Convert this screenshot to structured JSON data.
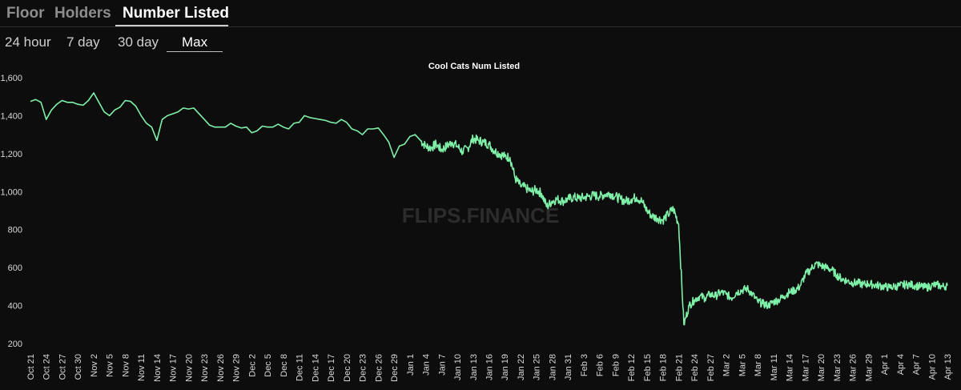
{
  "tabs": [
    {
      "label": "Floor",
      "active": false
    },
    {
      "label": "Holders",
      "active": false
    },
    {
      "label": "Number Listed",
      "active": true
    }
  ],
  "ranges": [
    {
      "label": "24 hour",
      "active": false
    },
    {
      "label": "7 day",
      "active": false
    },
    {
      "label": "30 day",
      "active": false
    },
    {
      "label": "Max",
      "active": true
    }
  ],
  "watermark": "FLIPS.FINANCE",
  "colors": {
    "line": "#7ff0a8",
    "background": "#0d0d0d",
    "active_text": "#ffffff",
    "inactive_text": "#8d8d8d"
  },
  "chart_data": {
    "type": "line",
    "title": "Cool Cats Num Listed",
    "xlabel": "",
    "ylabel": "",
    "ylim": [
      200,
      1600
    ],
    "y_ticks": [
      "200",
      "400",
      "600",
      "800",
      "1,000",
      "1,200",
      "1,400",
      "1,600"
    ],
    "x_ticks": [
      "Oct 21",
      "Oct 24",
      "Oct 27",
      "Oct 30",
      "Nov 2",
      "Nov 5",
      "Nov 8",
      "Nov 11",
      "Nov 14",
      "Nov 17",
      "Nov 20",
      "Nov 23",
      "Nov 26",
      "Nov 29",
      "Dec 2",
      "Dec 5",
      "Dec 8",
      "Dec 11",
      "Dec 14",
      "Dec 17",
      "Dec 20",
      "Dec 23",
      "Dec 26",
      "Dec 29",
      "Jan 1",
      "Jan 4",
      "Jan 7",
      "Jan 10",
      "Jan 13",
      "Jan 16",
      "Jan 19",
      "Jan 22",
      "Jan 25",
      "Jan 28",
      "Jan 31",
      "Feb 3",
      "Feb 6",
      "Feb 9",
      "Feb 12",
      "Feb 15",
      "Feb 18",
      "Feb 21",
      "Feb 24",
      "Feb 27",
      "Mar 2",
      "Mar 5",
      "Mar 8",
      "Mar 11",
      "Mar 14",
      "Mar 17",
      "Mar 20",
      "Mar 23",
      "Mar 26",
      "Mar 29",
      "Apr 1",
      "Apr 4",
      "Apr 7",
      "Apr 10",
      "Apr 13"
    ],
    "grid": false,
    "legend": "none",
    "series": [
      {
        "x_days_from_oct21": [
          0,
          1,
          2,
          3,
          4,
          5,
          6,
          7,
          8,
          9,
          10,
          11,
          12,
          13,
          14,
          15,
          16,
          17,
          18,
          19,
          20,
          21,
          22,
          23,
          24,
          25,
          26,
          27,
          28,
          29,
          30,
          31,
          32,
          33,
          34,
          35,
          36,
          37,
          38,
          39,
          40,
          41,
          42,
          43,
          44,
          45,
          46,
          47,
          48,
          49,
          50,
          51,
          52,
          53,
          54,
          55,
          56,
          57,
          58,
          59,
          60,
          61,
          62,
          63,
          64,
          65,
          66,
          67,
          68,
          69,
          70,
          71,
          72,
          73,
          74,
          75,
          76,
          77,
          78,
          79,
          80,
          81,
          82,
          83,
          84,
          85,
          86,
          87,
          88,
          89,
          90,
          91,
          92,
          93,
          94,
          95,
          96,
          97,
          98,
          99,
          100,
          101,
          102,
          103,
          104,
          105,
          106,
          107,
          108,
          109,
          110,
          111,
          112,
          113,
          114,
          115,
          116,
          117,
          118,
          119,
          120,
          121,
          122,
          123,
          124,
          125,
          126,
          127,
          128,
          129,
          130,
          131,
          132,
          133,
          134,
          135,
          136,
          137,
          138,
          139,
          140,
          141,
          142,
          143,
          144,
          145,
          146,
          147,
          148,
          149,
          150,
          151,
          152,
          153,
          154,
          155,
          156,
          157,
          158,
          159,
          160,
          161,
          162,
          163,
          164,
          165,
          166,
          167,
          168,
          169,
          170,
          171,
          172,
          173,
          174
        ],
        "values": [
          1475,
          1485,
          1470,
          1380,
          1430,
          1460,
          1480,
          1470,
          1470,
          1460,
          1455,
          1480,
          1520,
          1470,
          1420,
          1400,
          1430,
          1445,
          1480,
          1475,
          1450,
          1400,
          1360,
          1340,
          1270,
          1380,
          1400,
          1410,
          1420,
          1440,
          1435,
          1440,
          1410,
          1380,
          1350,
          1340,
          1340,
          1340,
          1360,
          1345,
          1335,
          1340,
          1310,
          1320,
          1345,
          1340,
          1340,
          1355,
          1340,
          1330,
          1360,
          1365,
          1400,
          1390,
          1385,
          1380,
          1375,
          1365,
          1360,
          1380,
          1365,
          1330,
          1320,
          1300,
          1330,
          1330,
          1335,
          1300,
          1260,
          1180,
          1240,
          1250,
          1290,
          1300,
          1270,
          1240,
          1230,
          1250,
          1220,
          1240,
          1260,
          1240,
          1210,
          1230,
          1280,
          1270,
          1260,
          1250,
          1215,
          1200,
          1185,
          1180,
          1070,
          1030,
          1020,
          1000,
          1010,
          990,
          920,
          950,
          960,
          950,
          960,
          970,
          965,
          970,
          975,
          980,
          975,
          985,
          990,
          975,
          960,
          950,
          960,
          970,
          950,
          900,
          870,
          860,
          850,
          880,
          910,
          830,
          300,
          400,
          430,
          450,
          440,
          460,
          450,
          470,
          460,
          440,
          470,
          480,
          490,
          460,
          420,
          410,
          400,
          420,
          430,
          450,
          470,
          480,
          500,
          560,
          590,
          620,
          610,
          600,
          590,
          560,
          540,
          530,
          520,
          520,
          510,
          515,
          510,
          505,
          500,
          495,
          500,
          505,
          510,
          510,
          505,
          500,
          495,
          505,
          510,
          500,
          505
        ],
        "noise": [
          6,
          6,
          6,
          6,
          6,
          6,
          6,
          6,
          6,
          6,
          6,
          6,
          6,
          6,
          6,
          6,
          6,
          6,
          6,
          6,
          6,
          6,
          6,
          6,
          6,
          6,
          6,
          6,
          6,
          6,
          6,
          6,
          6,
          6,
          6,
          6,
          6,
          6,
          6,
          6,
          6,
          6,
          6,
          6,
          6,
          6,
          6,
          6,
          6,
          6,
          6,
          6,
          6,
          6,
          6,
          6,
          6,
          6,
          6,
          6,
          6,
          6,
          6,
          6,
          6,
          6,
          6,
          6,
          6,
          6,
          6,
          6,
          6,
          6,
          25,
          25,
          25,
          25,
          25,
          25,
          25,
          25,
          25,
          25,
          25,
          25,
          25,
          25,
          25,
          25,
          25,
          25,
          25,
          25,
          25,
          25,
          25,
          25,
          25,
          25,
          25,
          25,
          25,
          25,
          25,
          25,
          25,
          25,
          25,
          25,
          25,
          25,
          25,
          25,
          25,
          25,
          25,
          25,
          25,
          25,
          25,
          25,
          25,
          25,
          22,
          22,
          22,
          22,
          22,
          22,
          22,
          22,
          22,
          22,
          22,
          22,
          22,
          22,
          22,
          22,
          22,
          22,
          22,
          22,
          22,
          22,
          22,
          22,
          22,
          22,
          22,
          22,
          22,
          22,
          22,
          22,
          22,
          22,
          22,
          22,
          22,
          22,
          22,
          22,
          22,
          22,
          22,
          22,
          22,
          22,
          22,
          22,
          22,
          22,
          22
        ]
      }
    ]
  }
}
